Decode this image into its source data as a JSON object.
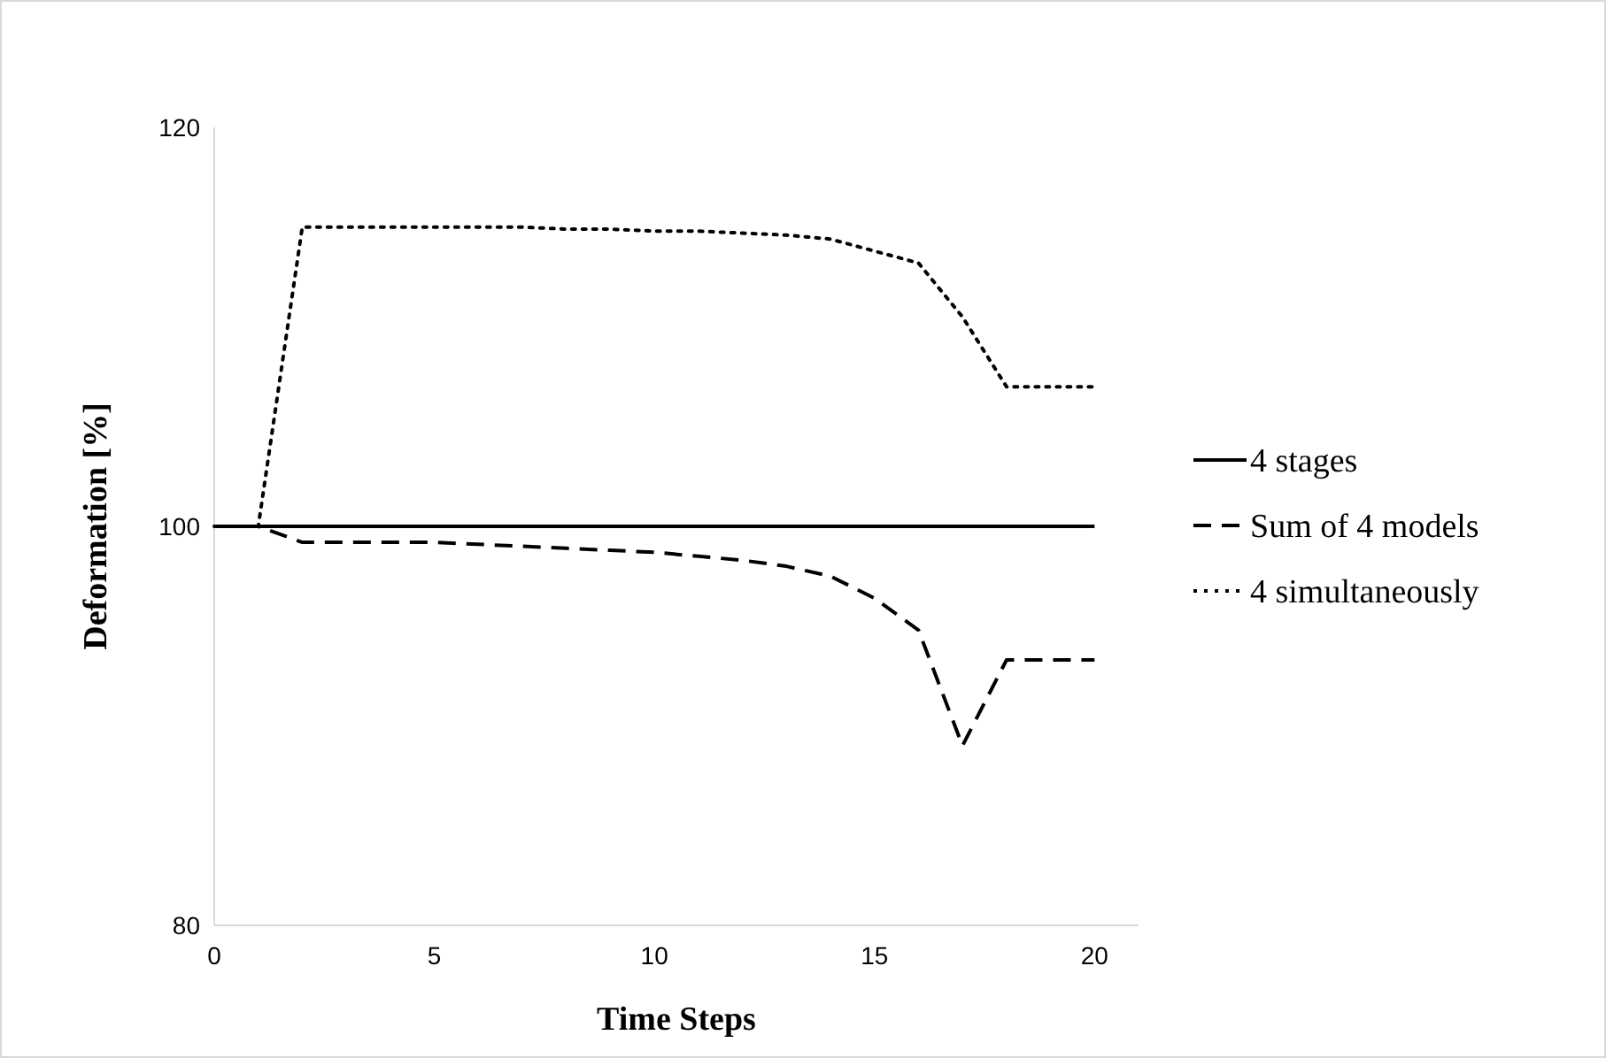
{
  "chart_data": {
    "type": "line",
    "xlabel": "Time Steps",
    "ylabel": "Deformation [%]",
    "x": [
      0,
      1,
      2,
      3,
      4,
      5,
      6,
      7,
      8,
      9,
      10,
      11,
      12,
      13,
      14,
      15,
      16,
      17,
      18,
      19,
      20
    ],
    "xlim": [
      0,
      21
    ],
    "xticks": [
      0,
      5,
      10,
      15,
      20
    ],
    "ylim": [
      80,
      120
    ],
    "yticks": [
      80,
      100,
      120
    ],
    "grid": false,
    "legend": "right",
    "marker": "none",
    "series": [
      {
        "name": "4 stages",
        "color": "#000000",
        "line_style": "solid",
        "values": [
          100,
          100,
          100,
          100,
          100,
          100,
          100,
          100,
          100,
          100,
          100,
          100,
          100,
          100,
          100,
          100,
          100,
          100,
          100,
          100,
          100
        ]
      },
      {
        "name": "Sum of 4 models",
        "color": "#000000",
        "line_style": "dashed",
        "values": [
          100,
          100,
          99.2,
          99.2,
          99.2,
          99.2,
          99.1,
          99.0,
          98.9,
          98.8,
          98.7,
          98.5,
          98.3,
          98.0,
          97.5,
          96.4,
          94.8,
          89.0,
          93.3,
          93.3,
          93.3
        ]
      },
      {
        "name": "4 simultaneously",
        "color": "#000000",
        "line_style": "dotted",
        "values": [
          100,
          100,
          115,
          115,
          115,
          115,
          115,
          115,
          114.9,
          114.9,
          114.8,
          114.8,
          114.7,
          114.6,
          114.4,
          113.8,
          113.2,
          110.5,
          107,
          107,
          107
        ]
      }
    ]
  }
}
